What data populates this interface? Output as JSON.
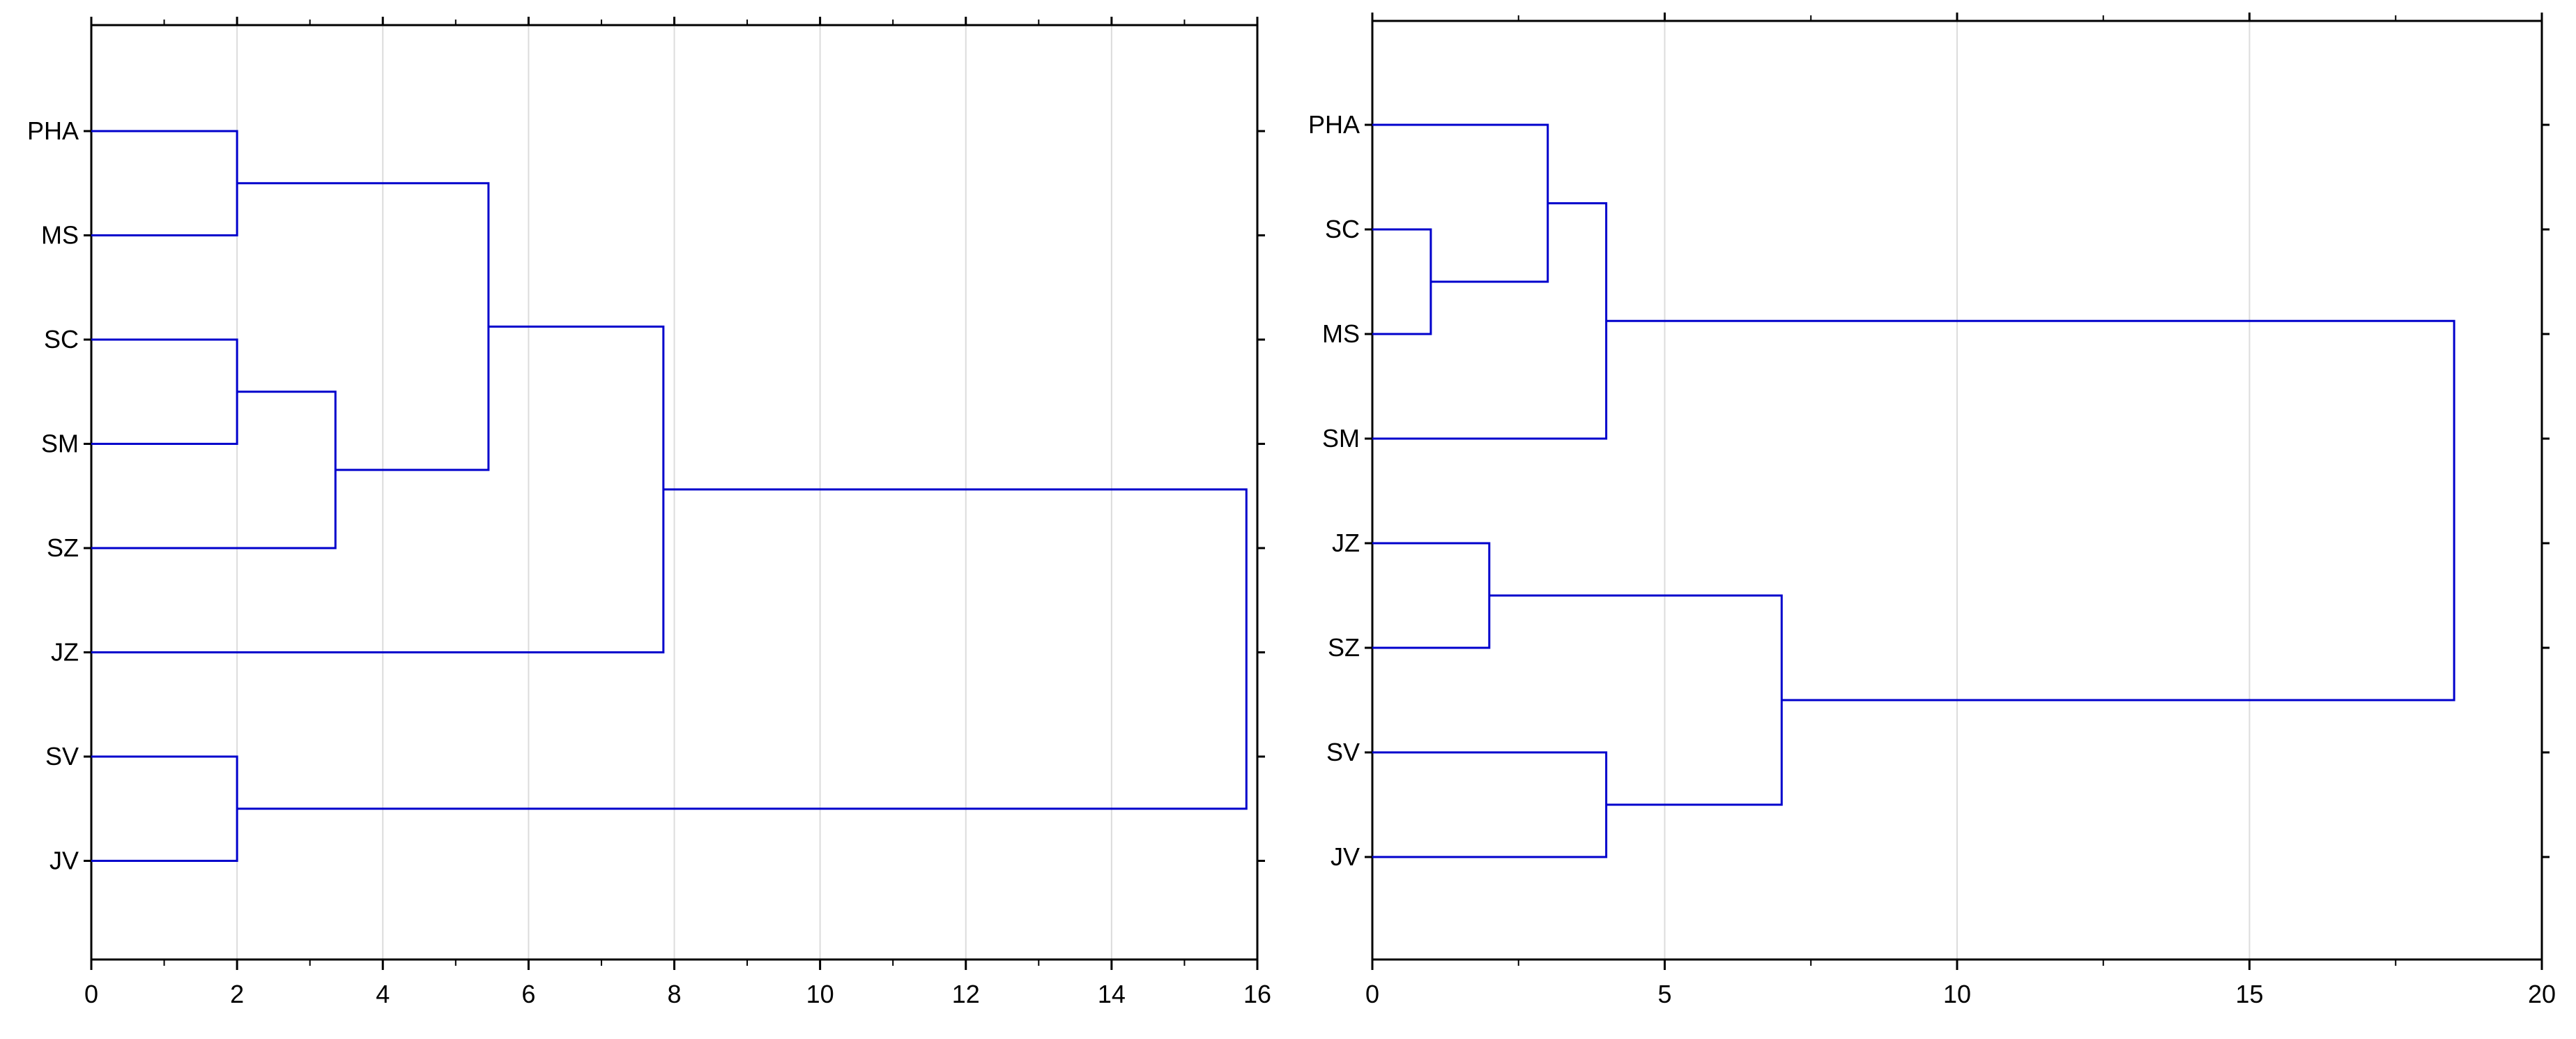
{
  "chart_data": [
    {
      "type": "dendrogram",
      "xlim": [
        0,
        16
      ],
      "x_ticks": [
        "0",
        "2",
        "4",
        "6",
        "8",
        "10",
        "12",
        "14",
        "16"
      ],
      "grid": "vertical",
      "leaves": [
        "PHA",
        "MS",
        "SC",
        "SM",
        "SZ",
        "JZ",
        "SV",
        "JV"
      ],
      "merges": [
        {
          "left": "PHA",
          "right": "MS",
          "height": 2.0
        },
        {
          "left": "SC",
          "right": "SM",
          "height": 2.0
        },
        {
          "left": "SV",
          "right": "JV",
          "height": 2.0
        },
        {
          "left": "SC+SM",
          "right": "SZ",
          "height": 3.35
        },
        {
          "left": "PHA+MS",
          "right": "SC+SM+SZ",
          "height": 5.45
        },
        {
          "left": "PHA+MS+SC+SM+SZ",
          "right": "JZ",
          "height": 7.85
        },
        {
          "left": "PHA+MS+SC+SM+SZ+JZ",
          "right": "SV+JV",
          "height": 15.85
        }
      ]
    },
    {
      "type": "dendrogram",
      "xlim": [
        0,
        20
      ],
      "x_ticks": [
        "0",
        "5",
        "10",
        "15",
        "20"
      ],
      "grid": "vertical",
      "leaves": [
        "PHA",
        "SC",
        "MS",
        "SM",
        "JZ",
        "SZ",
        "SV",
        "JV"
      ],
      "merges": [
        {
          "left": "SC",
          "right": "MS",
          "height": 1.0
        },
        {
          "left": "JZ",
          "right": "SZ",
          "height": 2.0
        },
        {
          "left": "PHA",
          "right": "SC+MS",
          "height": 3.0
        },
        {
          "left": "PHA+SC+MS",
          "right": "SM",
          "height": 4.0
        },
        {
          "left": "SV",
          "right": "JV",
          "height": 4.0
        },
        {
          "left": "JZ+SZ",
          "right": "SV+JV",
          "height": 7.0
        },
        {
          "left": "PHA+SC+MS+SM",
          "right": "JZ+SZ+SV+JV",
          "height": 18.5
        }
      ]
    }
  ]
}
